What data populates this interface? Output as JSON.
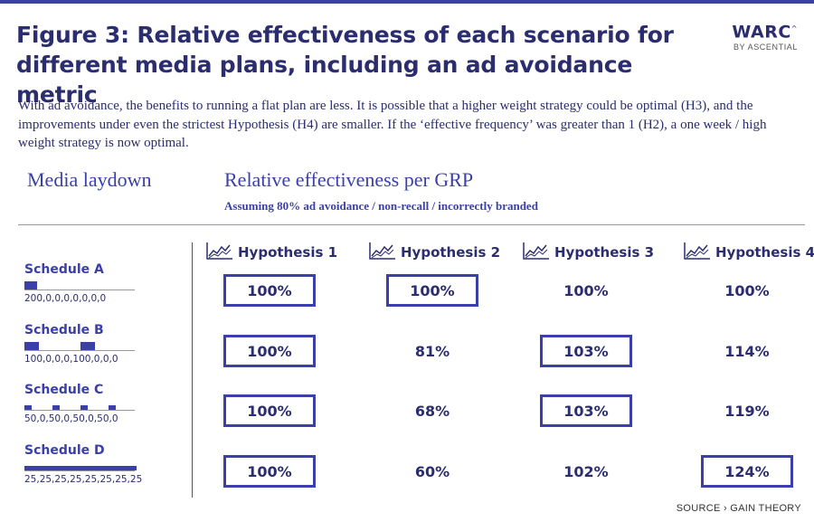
{
  "title": "Figure 3: Relative effectiveness of each scenario for different media plans, including an ad avoidance metric",
  "logo": {
    "main": "WARC",
    "sub": "BY ASCENTIAL",
    "mark": "^"
  },
  "intro": "With ad avoidance, the benefits to running a flat plan are less. It is possible that a higher weight strategy could be optimal (H3), and the improvements under even the strictest Hypothesis (H4) are smaller.  If the ‘effective frequency’ was greater than 1 (H2), a one week / high weight strategy is now optimal.",
  "left_heading": "Media laydown",
  "right_heading": "Relative effectiveness per GRP",
  "subheading": "Assuming 80% ad avoidance / non-recall / incorrectly branded",
  "source": "SOURCE › GAIN THEORY",
  "chart_data": {
    "type": "table",
    "title": "Relative effectiveness per GRP",
    "subtitle": "Assuming 80% ad avoidance / non-recall / incorrectly branded",
    "columns": [
      "Hypothesis 1",
      "Hypothesis 2",
      "Hypothesis 3",
      "Hypothesis 4"
    ],
    "rows": [
      {
        "schedule": "Schedule A",
        "laydown_label": "200,0,0,0,0,0,0,0",
        "laydown": [
          200,
          0,
          0,
          0,
          0,
          0,
          0,
          0
        ],
        "values": [
          "100%",
          "100%",
          "100%",
          "100%"
        ],
        "highlighted": [
          true,
          true,
          false,
          false
        ]
      },
      {
        "schedule": "Schedule B",
        "laydown_label": "100,0,0,0,100,0,0,0",
        "laydown": [
          100,
          0,
          0,
          0,
          100,
          0,
          0,
          0
        ],
        "values": [
          "100%",
          "81%",
          "103%",
          "114%"
        ],
        "highlighted": [
          true,
          false,
          true,
          false
        ]
      },
      {
        "schedule": "Schedule C",
        "laydown_label": "50,0,50,0,50,0,50,0",
        "laydown": [
          50,
          0,
          50,
          0,
          50,
          0,
          50,
          0
        ],
        "values": [
          "100%",
          "68%",
          "103%",
          "119%"
        ],
        "highlighted": [
          true,
          false,
          true,
          false
        ]
      },
      {
        "schedule": "Schedule D",
        "laydown_label": "25,25,25,25,25,25,25,25",
        "laydown": [
          25,
          25,
          25,
          25,
          25,
          25,
          25,
          25
        ],
        "values": [
          "100%",
          "60%",
          "102%",
          "124%"
        ],
        "highlighted": [
          true,
          false,
          false,
          true
        ]
      }
    ]
  },
  "colors": {
    "accent": "#3b3fa8",
    "text": "#2b2d6e",
    "rule": "#999999"
  },
  "icons": {
    "hypothesis_icon": "line-chart-icon"
  }
}
